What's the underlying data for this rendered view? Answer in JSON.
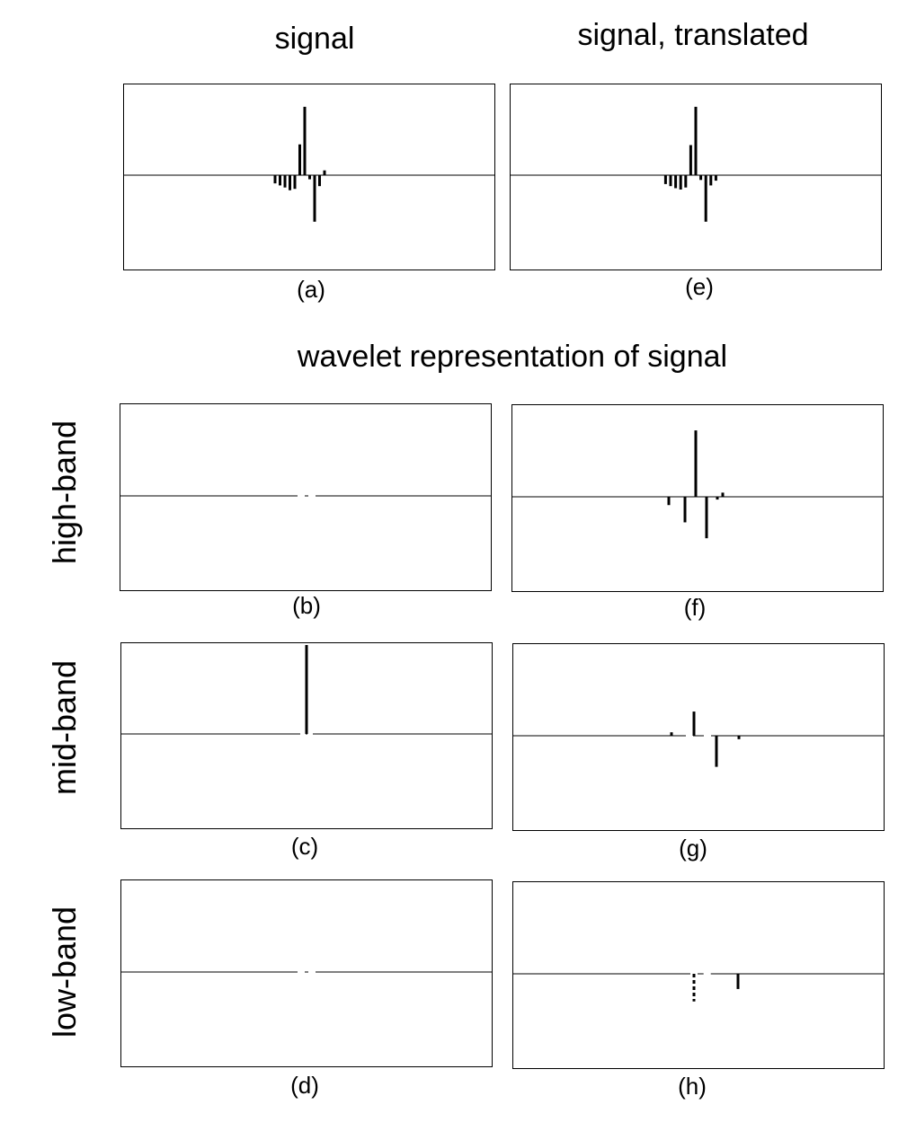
{
  "titles": {
    "left": "signal",
    "right": "signal, translated",
    "section": "wavelet representation of signal"
  },
  "row_labels": {
    "high": "high-band",
    "mid": "mid-band",
    "low": "low-band"
  },
  "captions": {
    "a": "(a)",
    "b": "(b)",
    "c": "(c)",
    "d": "(d)",
    "e": "(e)",
    "f": "(f)",
    "g": "(g)",
    "h": "(h)"
  },
  "chart_data": [
    {
      "id": "a",
      "type": "bar",
      "title": "signal",
      "ylim": [
        -1.3,
        1.3
      ],
      "x": [
        -6,
        -5,
        -4,
        -3,
        -2,
        -1,
        0,
        1,
        2,
        3,
        4
      ],
      "values": [
        -0.12,
        -0.15,
        -0.18,
        -0.22,
        -0.2,
        0.45,
        1.0,
        -0.06,
        -0.68,
        -0.16,
        0.07
      ],
      "gaps": []
    },
    {
      "id": "e",
      "type": "bar",
      "title": "signal, translated",
      "ylim": [
        -1.3,
        1.3
      ],
      "x": [
        -6,
        -5,
        -4,
        -3,
        -2,
        -1,
        0,
        1,
        2,
        3,
        4
      ],
      "values": [
        -0.13,
        -0.16,
        -0.19,
        -0.21,
        -0.18,
        0.44,
        1.0,
        -0.07,
        -0.68,
        -0.15,
        -0.08
      ],
      "gaps": []
    },
    {
      "id": "b",
      "type": "bar",
      "ylim": [
        -1.3,
        1.3
      ],
      "x": [
        -2,
        2
      ],
      "values": [
        0,
        0
      ],
      "gaps": [
        -2,
        2
      ]
    },
    {
      "id": "f",
      "type": "bar",
      "ylim": [
        -1.3,
        1.3
      ],
      "x": [
        -5,
        -2,
        0,
        2,
        4,
        5
      ],
      "values": [
        -0.12,
        -0.37,
        0.96,
        -0.6,
        -0.04,
        0.06
      ],
      "gaps": []
    },
    {
      "id": "c",
      "type": "bar",
      "ylim": [
        -1.3,
        1.3
      ],
      "x": [
        0
      ],
      "values": [
        1.3
      ],
      "gaps": [
        -1,
        1
      ]
    },
    {
      "id": "g",
      "type": "bar",
      "ylim": [
        -1.3,
        1.3
      ],
      "x": [
        -5,
        0,
        5,
        10
      ],
      "values": [
        0.05,
        0.35,
        -0.45,
        -0.05
      ],
      "gaps": [
        -1,
        3
      ]
    },
    {
      "id": "d",
      "type": "bar",
      "ylim": [
        -1.3,
        1.3
      ],
      "x": [
        -2,
        2
      ],
      "values": [
        0,
        0
      ],
      "gaps": [
        -2,
        2
      ]
    },
    {
      "id": "h",
      "type": "bar",
      "ylim": [
        -1.3,
        1.3
      ],
      "x": [
        0,
        10
      ],
      "values": [
        -0.4,
        -0.22
      ],
      "gaps": [
        0,
        3
      ],
      "dashed": [
        0
      ]
    }
  ]
}
